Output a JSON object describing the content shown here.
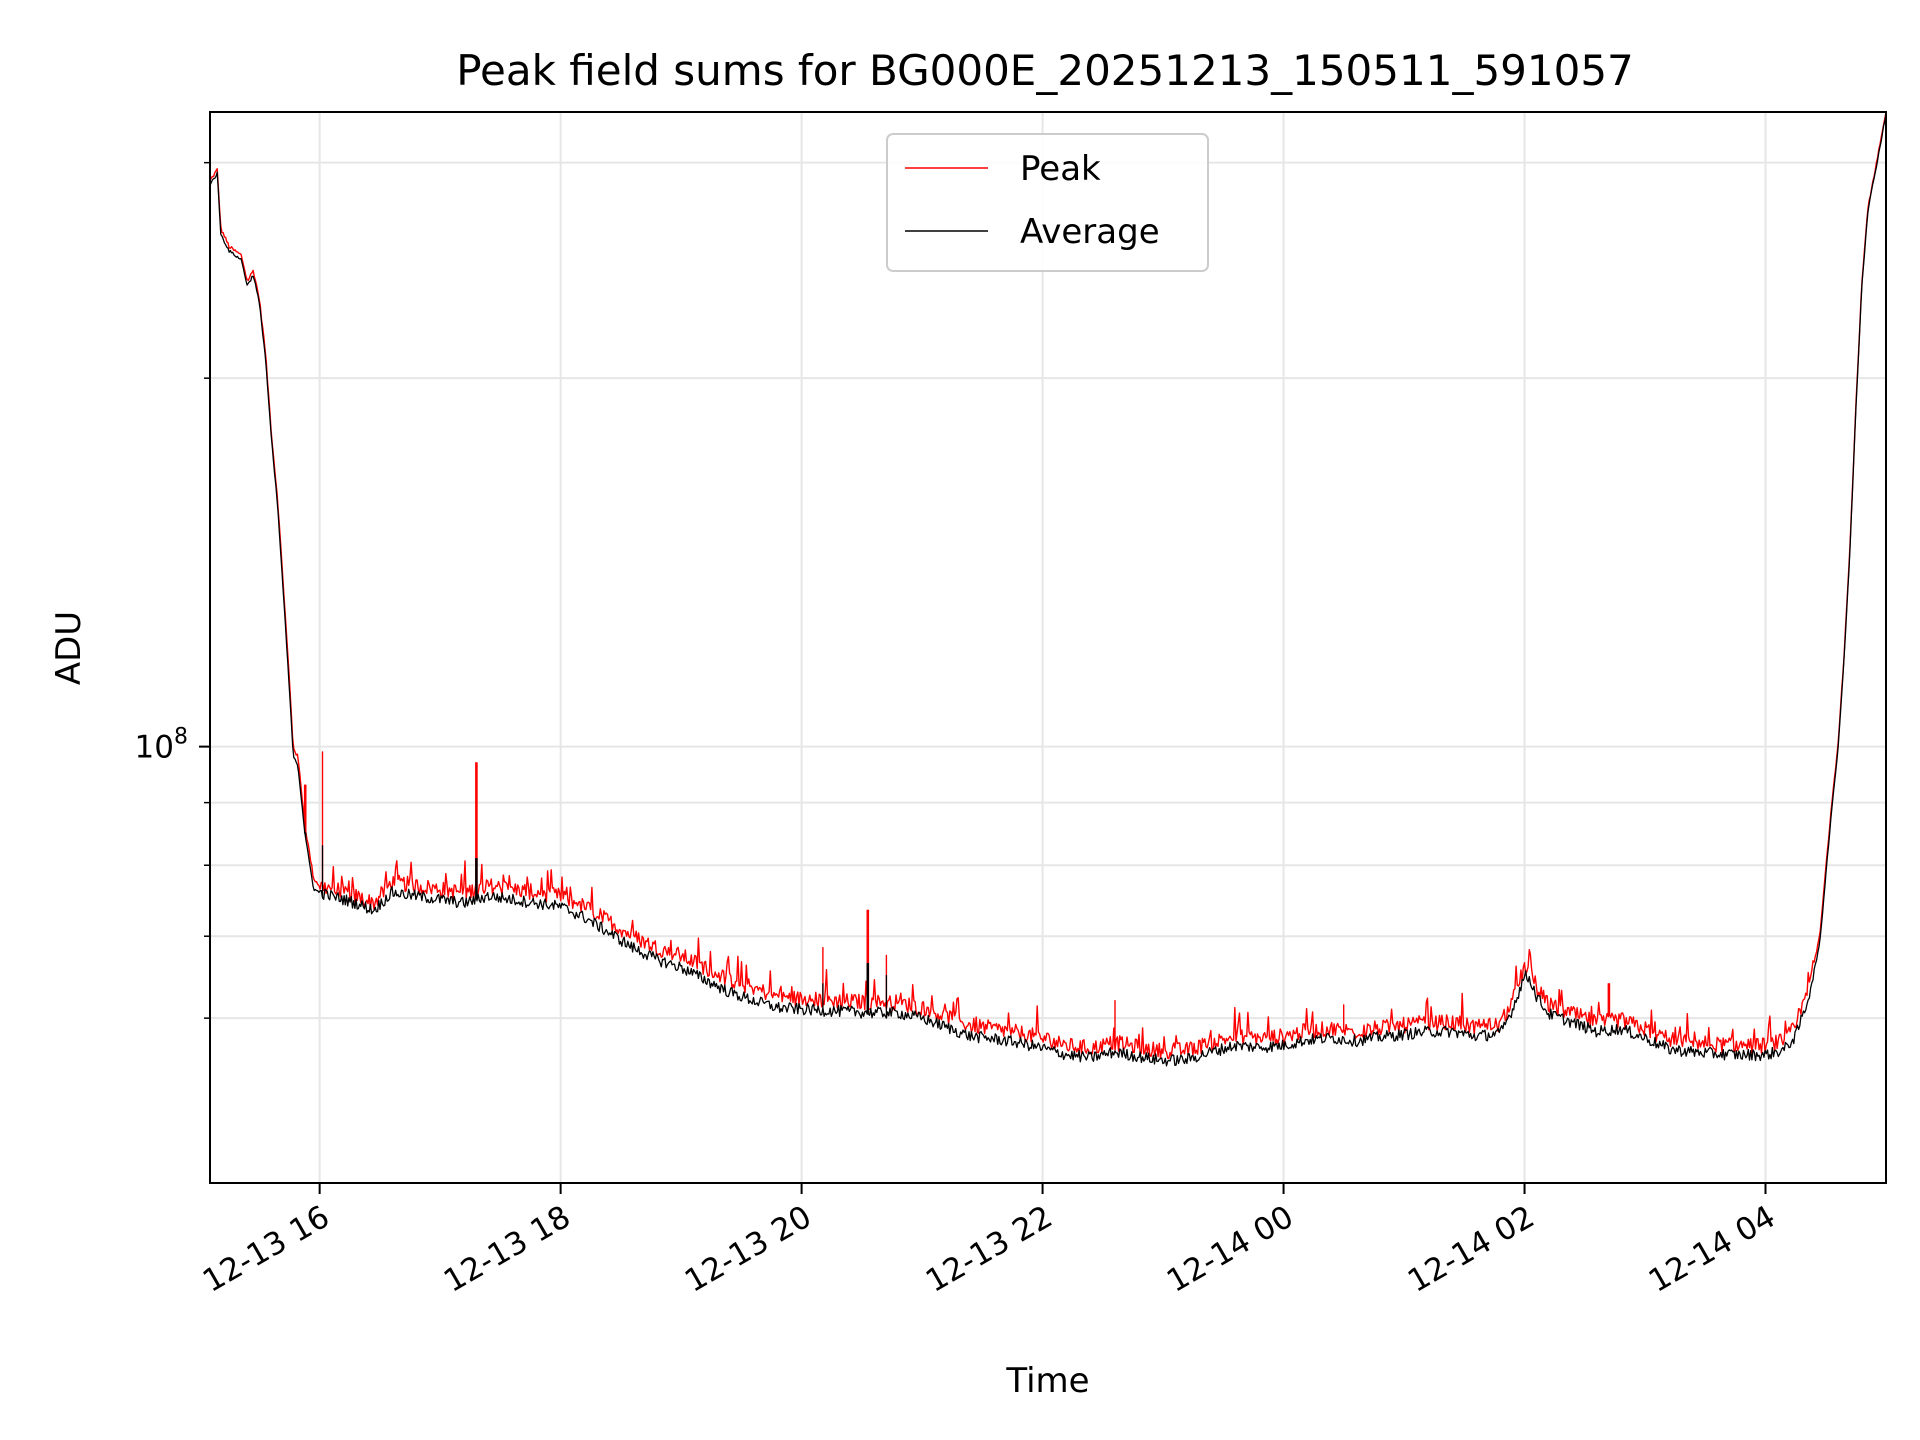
{
  "chart_data": {
    "type": "line",
    "title": "Peak field sums for BG000E_20251213_150511_591057",
    "xlabel": "Time",
    "ylabel": "ADU",
    "yscale": "log",
    "grid": true,
    "legend_position": "top-center",
    "xlim_hours": [
      -0.91,
      13.0
    ],
    "ylim": [
      44000000,
      330000000
    ],
    "x_ticks": [
      {
        "hour": 0,
        "label": "12-13 16"
      },
      {
        "hour": 2,
        "label": "12-13 18"
      },
      {
        "hour": 4,
        "label": "12-13 20"
      },
      {
        "hour": 6,
        "label": "12-13 22"
      },
      {
        "hour": 8,
        "label": "12-14 00"
      },
      {
        "hour": 10,
        "label": "12-14 02"
      },
      {
        "hour": 12,
        "label": "12-14 04"
      }
    ],
    "y_major_ticks": [
      {
        "value": 100000000,
        "base": "10",
        "exponent": "8"
      }
    ],
    "y_minor_ticks": [
      60000000,
      70000000,
      80000000,
      90000000,
      200000000,
      300000000
    ],
    "series": [
      {
        "name": "Peak",
        "color": "#ff0000",
        "points": [
          [
            -0.91,
            290000000
          ],
          [
            -0.85,
            296000000
          ],
          [
            -0.82,
            265000000
          ],
          [
            -0.75,
            256000000
          ],
          [
            -0.65,
            252000000
          ],
          [
            -0.6,
            240000000
          ],
          [
            -0.55,
            245000000
          ],
          [
            -0.5,
            232000000
          ],
          [
            -0.45,
            210000000
          ],
          [
            -0.4,
            180000000
          ],
          [
            -0.35,
            160000000
          ],
          [
            -0.3,
            135000000
          ],
          [
            -0.25,
            113000000
          ],
          [
            -0.22,
            100000000
          ],
          [
            -0.18,
            98000000
          ],
          [
            -0.12,
            86000000
          ],
          [
            -0.05,
            78000000
          ],
          [
            0.0,
            77000000
          ],
          [
            0.1,
            76500000
          ],
          [
            0.2,
            76000000
          ],
          [
            0.3,
            75500000
          ],
          [
            0.45,
            74500000
          ],
          [
            0.6,
            77500000
          ],
          [
            0.8,
            77000000
          ],
          [
            1.0,
            76500000
          ],
          [
            1.2,
            76000000
          ],
          [
            1.4,
            77000000
          ],
          [
            1.6,
            76500000
          ],
          [
            1.8,
            76000000
          ],
          [
            2.0,
            75500000
          ],
          [
            2.2,
            74000000
          ],
          [
            2.4,
            72000000
          ],
          [
            2.6,
            70000000
          ],
          [
            2.8,
            68500000
          ],
          [
            3.0,
            67500000
          ],
          [
            3.2,
            66000000
          ],
          [
            3.4,
            64500000
          ],
          [
            3.6,
            63500000
          ],
          [
            3.8,
            62500000
          ],
          [
            4.0,
            62200000
          ],
          [
            4.3,
            62000000
          ],
          [
            4.6,
            61800000
          ],
          [
            4.8,
            61800000
          ],
          [
            5.0,
            61200000
          ],
          [
            5.2,
            60200000
          ],
          [
            5.4,
            59200000
          ],
          [
            5.6,
            58800000
          ],
          [
            5.8,
            58400000
          ],
          [
            6.0,
            57800000
          ],
          [
            6.2,
            57000000
          ],
          [
            6.4,
            56700000
          ],
          [
            6.6,
            57300000
          ],
          [
            6.8,
            56800000
          ],
          [
            7.0,
            56400000
          ],
          [
            7.2,
            56500000
          ],
          [
            7.4,
            57300000
          ],
          [
            7.6,
            58000000
          ],
          [
            7.8,
            57800000
          ],
          [
            8.0,
            58000000
          ],
          [
            8.2,
            58600000
          ],
          [
            8.4,
            58800000
          ],
          [
            8.6,
            58500000
          ],
          [
            8.8,
            58900000
          ],
          [
            9.0,
            59200000
          ],
          [
            9.2,
            59500000
          ],
          [
            9.4,
            59500000
          ],
          [
            9.6,
            59000000
          ],
          [
            9.8,
            59300000
          ],
          [
            9.9,
            62000000
          ],
          [
            10.0,
            66000000
          ],
          [
            10.05,
            65500000
          ],
          [
            10.1,
            63500000
          ],
          [
            10.2,
            61500000
          ],
          [
            10.4,
            60500000
          ],
          [
            10.6,
            59500000
          ],
          [
            10.8,
            59800000
          ],
          [
            11.0,
            58800000
          ],
          [
            11.2,
            57600000
          ],
          [
            11.4,
            57300000
          ],
          [
            11.6,
            57100000
          ],
          [
            11.8,
            57000000
          ],
          [
            12.0,
            57000000
          ],
          [
            12.15,
            57500000
          ],
          [
            12.25,
            59000000
          ],
          [
            12.35,
            63000000
          ],
          [
            12.45,
            70000000
          ],
          [
            12.55,
            90000000
          ],
          [
            12.6,
            100000000
          ],
          [
            12.65,
            118000000
          ],
          [
            12.7,
            145000000
          ],
          [
            12.75,
            190000000
          ],
          [
            12.8,
            240000000
          ],
          [
            12.85,
            275000000
          ],
          [
            12.9,
            292000000
          ],
          [
            12.95,
            310000000
          ],
          [
            13.0,
            330000000
          ]
        ],
        "spikes": [
          [
            -0.12,
            93000000
          ],
          [
            0.02,
            99000000
          ],
          [
            1.3,
            97000000
          ],
          [
            4.18,
            68500000
          ],
          [
            4.55,
            73500000
          ],
          [
            4.7,
            67500000
          ],
          [
            6.6,
            62000000
          ],
          [
            8.5,
            61500000
          ],
          [
            10.7,
            64000000
          ]
        ]
      },
      {
        "name": "Average",
        "color": "#000000",
        "points": [
          [
            -0.91,
            288000000
          ],
          [
            -0.85,
            294000000
          ],
          [
            -0.82,
            262000000
          ],
          [
            -0.75,
            254000000
          ],
          [
            -0.65,
            250000000
          ],
          [
            -0.6,
            238000000
          ],
          [
            -0.55,
            243000000
          ],
          [
            -0.5,
            230000000
          ],
          [
            -0.45,
            208000000
          ],
          [
            -0.4,
            178000000
          ],
          [
            -0.35,
            158000000
          ],
          [
            -0.3,
            133000000
          ],
          [
            -0.25,
            111000000
          ],
          [
            -0.22,
            98500000
          ],
          [
            -0.18,
            96500000
          ],
          [
            -0.12,
            84500000
          ],
          [
            -0.05,
            76500000
          ],
          [
            0.0,
            76000000
          ],
          [
            0.1,
            75500000
          ],
          [
            0.2,
            75000000
          ],
          [
            0.3,
            74500000
          ],
          [
            0.45,
            73500000
          ],
          [
            0.6,
            76000000
          ],
          [
            0.8,
            75500000
          ],
          [
            1.0,
            75000000
          ],
          [
            1.2,
            74500000
          ],
          [
            1.4,
            75500000
          ],
          [
            1.6,
            75000000
          ],
          [
            1.8,
            74500000
          ],
          [
            2.0,
            74000000
          ],
          [
            2.2,
            72500000
          ],
          [
            2.4,
            70500000
          ],
          [
            2.6,
            68500000
          ],
          [
            2.8,
            67000000
          ],
          [
            3.0,
            66000000
          ],
          [
            3.2,
            64500000
          ],
          [
            3.4,
            63000000
          ],
          [
            3.6,
            62000000
          ],
          [
            3.8,
            61200000
          ],
          [
            4.0,
            61000000
          ],
          [
            4.3,
            60800000
          ],
          [
            4.6,
            60600000
          ],
          [
            4.8,
            60600000
          ],
          [
            5.0,
            60000000
          ],
          [
            5.2,
            59000000
          ],
          [
            5.4,
            58000000
          ],
          [
            5.6,
            57700000
          ],
          [
            5.8,
            57300000
          ],
          [
            6.0,
            56700000
          ],
          [
            6.2,
            56000000
          ],
          [
            6.4,
            55700000
          ],
          [
            6.6,
            56300000
          ],
          [
            6.8,
            55800000
          ],
          [
            7.0,
            55400000
          ],
          [
            7.2,
            55500000
          ],
          [
            7.4,
            56300000
          ],
          [
            7.6,
            57000000
          ],
          [
            7.8,
            56800000
          ],
          [
            8.0,
            57000000
          ],
          [
            8.2,
            57600000
          ],
          [
            8.4,
            57800000
          ],
          [
            8.6,
            57500000
          ],
          [
            8.8,
            57900000
          ],
          [
            9.0,
            58200000
          ],
          [
            9.2,
            58500000
          ],
          [
            9.4,
            58500000
          ],
          [
            9.6,
            58000000
          ],
          [
            9.8,
            58300000
          ],
          [
            9.9,
            61000000
          ],
          [
            10.0,
            65000000
          ],
          [
            10.05,
            64500000
          ],
          [
            10.1,
            62500000
          ],
          [
            10.2,
            60500000
          ],
          [
            10.4,
            59500000
          ],
          [
            10.6,
            58500000
          ],
          [
            10.8,
            58800000
          ],
          [
            11.0,
            57800000
          ],
          [
            11.2,
            56600000
          ],
          [
            11.4,
            56300000
          ],
          [
            11.6,
            56100000
          ],
          [
            11.8,
            56000000
          ],
          [
            12.0,
            56000000
          ],
          [
            12.15,
            56500000
          ],
          [
            12.25,
            58000000
          ],
          [
            12.35,
            62000000
          ],
          [
            12.45,
            69000000
          ],
          [
            12.55,
            89000000
          ],
          [
            12.6,
            99000000
          ],
          [
            12.65,
            117000000
          ],
          [
            12.7,
            144000000
          ],
          [
            12.75,
            189000000
          ],
          [
            12.8,
            239000000
          ],
          [
            12.85,
            274000000
          ],
          [
            12.9,
            291000000
          ],
          [
            12.95,
            309000000
          ],
          [
            13.0,
            329000000
          ]
        ],
        "spikes": [
          [
            -0.12,
            85000000
          ],
          [
            0.02,
            83000000
          ],
          [
            1.3,
            81000000
          ],
          [
            4.18,
            64000000
          ],
          [
            4.55,
            66500000
          ],
          [
            4.7,
            65000000
          ]
        ]
      }
    ]
  }
}
